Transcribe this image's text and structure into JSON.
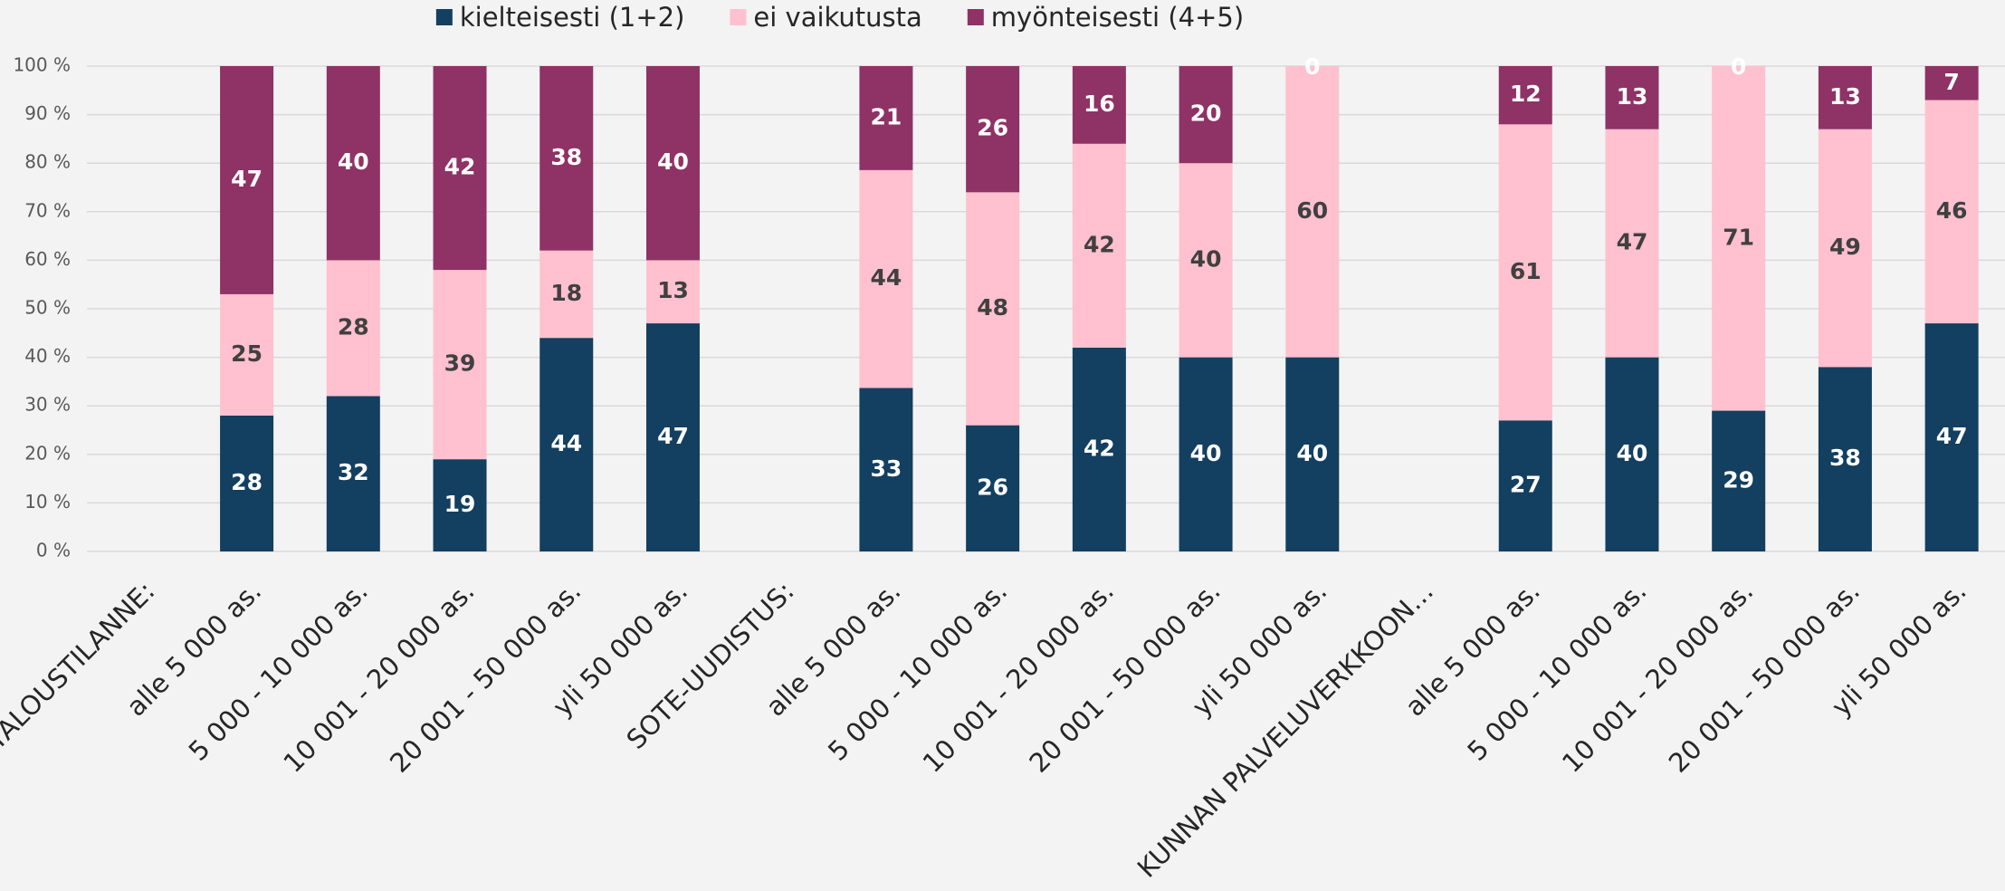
{
  "chart_data": {
    "type": "stacked_percent_bar",
    "categories": [
      "TALOUSTILANNE:",
      "alle 5 000 as.",
      "5 000 - 10 000 as.",
      "10 001 - 20 000 as.",
      "20 001 - 50 000 as.",
      "yli 50 000 as.",
      "SOTE-UUDISTUS:",
      "alle 5 000 as.",
      "5 000 - 10 000 as.",
      "10 001 - 20 000 as.",
      "20 001 - 50 000 as.",
      "yli 50 000 as.",
      "KUNNAN PALVELUVERKKOON…",
      "alle 5 000 as.",
      "5 000 - 10 000 as.",
      "10 001 - 20 000 as.",
      "20 001 - 50 000 as.",
      "yli 50 000 as."
    ],
    "series": [
      {
        "name": "kielteisesti (1+2)",
        "color": "#133f60",
        "label_color": "#ffffff",
        "values": [
          null,
          28,
          32,
          19,
          44,
          47,
          null,
          33,
          26,
          42,
          40,
          40,
          null,
          27,
          40,
          29,
          38,
          47
        ]
      },
      {
        "name": "ei vaikutusta",
        "color": "#ffc0cf",
        "label_color": "#404040",
        "values": [
          null,
          25,
          28,
          39,
          18,
          13,
          null,
          44,
          48,
          42,
          40,
          60,
          null,
          61,
          47,
          71,
          49,
          46
        ]
      },
      {
        "name": "myönteisesti (4+5)",
        "color": "#8f3265",
        "label_color": "#ffffff",
        "values": [
          null,
          47,
          40,
          42,
          38,
          40,
          null,
          21,
          26,
          16,
          20,
          0,
          null,
          12,
          13,
          0,
          13,
          7
        ]
      }
    ],
    "ylim": [
      0,
      100
    ],
    "yticks": [
      {
        "value": 0,
        "label": "0 %"
      },
      {
        "value": 10,
        "label": "10 %"
      },
      {
        "value": 20,
        "label": "20 %"
      },
      {
        "value": 30,
        "label": "30 %"
      },
      {
        "value": 40,
        "label": "40 %"
      },
      {
        "value": 50,
        "label": "50 %"
      },
      {
        "value": 60,
        "label": "60 %"
      },
      {
        "value": 70,
        "label": "70 %"
      },
      {
        "value": 80,
        "label": "80 %"
      },
      {
        "value": 90,
        "label": "90 %"
      },
      {
        "value": 100,
        "label": "100 %"
      }
    ],
    "grid": true,
    "legend": "top"
  }
}
